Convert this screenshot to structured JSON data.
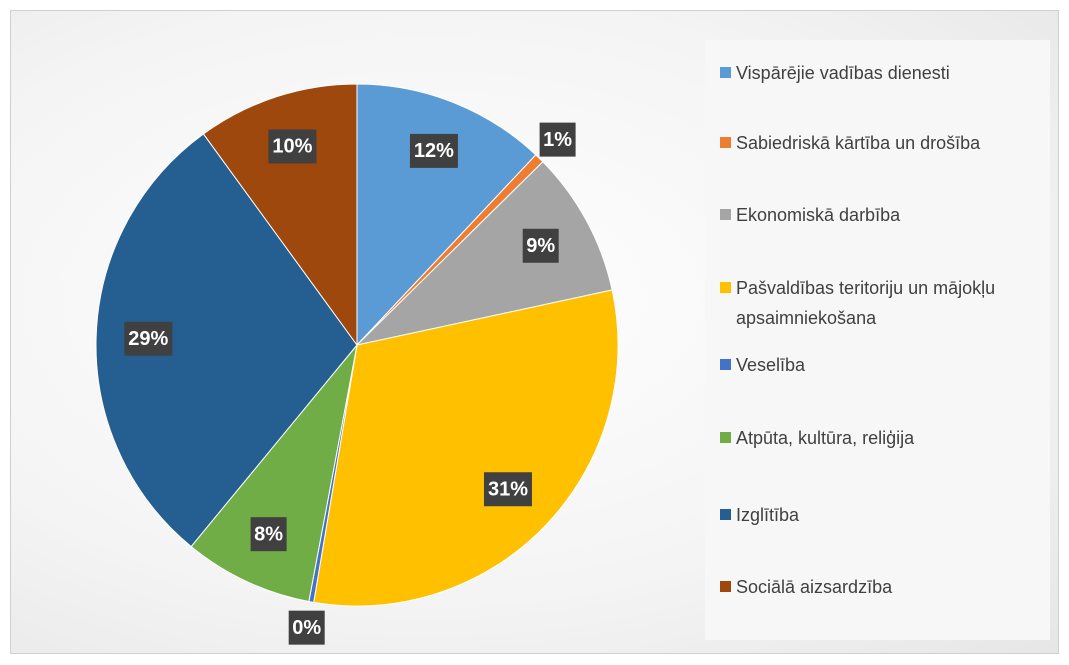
{
  "chart_data": {
    "type": "pie",
    "categories": [
      "Vispārējie vadības dienesti",
      "Sabiedriskā kārtība un drošība",
      "Ekonomiskā darbība",
      "Pašvaldības teritoriju un mājokļu apsaimniekošana",
      "Veselība",
      "Atpūta, kultūra, reliģija",
      "Izglītība",
      "Sociālā aizsardzība"
    ],
    "values": [
      12,
      0.6,
      9,
      31,
      0.3,
      8,
      29,
      10
    ],
    "value_labels": [
      "12%",
      "1%",
      "9%",
      "31%",
      "0%",
      "8%",
      "29%",
      "10%"
    ],
    "colors": [
      "#5b9bd5",
      "#ed7d31",
      "#a5a5a5",
      "#ffc000",
      "#4472c4",
      "#70ad47",
      "#255e91",
      "#9e480e"
    ],
    "legend": "right"
  }
}
